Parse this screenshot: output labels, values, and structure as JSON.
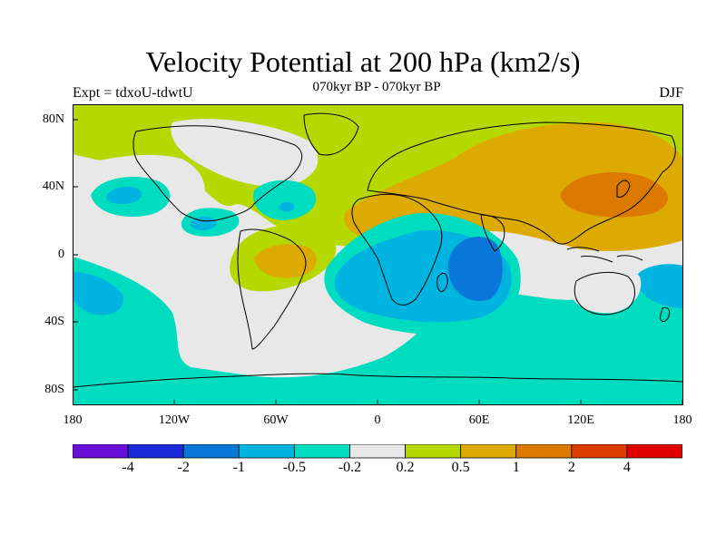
{
  "title": "Velocity Potential at 200 hPa (km2/s)",
  "subtitle": "070kyr BP - 070kyr BP",
  "left_label": "Expt = tdxoU-tdwtU",
  "right_label": "DJF",
  "x_ticks": [
    "180",
    "120W",
    "60W",
    "0",
    "60E",
    "120E",
    "180"
  ],
  "y_ticks": [
    "80N",
    "40N",
    "0",
    "40S",
    "80S"
  ],
  "colorbar": {
    "colors": [
      "#6a0fd8",
      "#1a2ad8",
      "#0a78d8",
      "#00b4e0",
      "#00dcc0",
      "#e8e8e8",
      "#b4d800",
      "#dcaa00",
      "#dc7a00",
      "#dc3c00",
      "#e00000"
    ],
    "labels": [
      "-4",
      "-2",
      "-1",
      "-0.5",
      "-0.2",
      "0.2",
      "0.5",
      "1",
      "2",
      "4"
    ]
  }
}
